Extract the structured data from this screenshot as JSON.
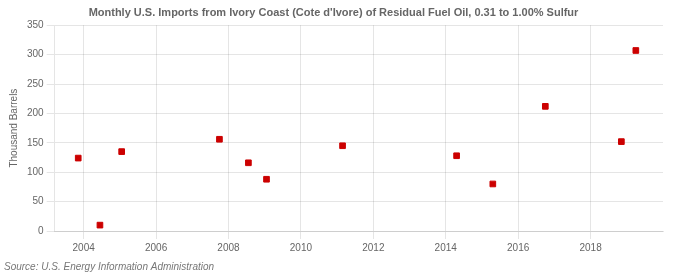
{
  "chart_data": {
    "type": "scatter",
    "title": "Monthly U.S. Imports from Ivory Coast (Cote d'Ivore) of Residual Fuel Oil, 0.31 to 1.00% Sulfur",
    "ylabel": "Thousand Barrels",
    "source": "Source: U.S. Energy Information Administration",
    "x": [
      2003.85,
      2004.45,
      2005.05,
      2007.75,
      2008.55,
      2009.05,
      2011.15,
      2014.3,
      2015.3,
      2016.75,
      2018.85,
      2019.25
    ],
    "values": [
      124,
      10,
      135,
      156,
      116,
      88,
      145,
      128,
      80,
      212,
      152,
      307
    ],
    "color": "#cc0000",
    "marker": "square",
    "xlim": [
      2003.2,
      2020.0
    ],
    "ylim": [
      0,
      350
    ],
    "xticks": [
      2004,
      2006,
      2008,
      2010,
      2012,
      2014,
      2016,
      2018
    ],
    "yticks": [
      0,
      50,
      100,
      150,
      200,
      250,
      300,
      350
    ],
    "grid": true
  }
}
